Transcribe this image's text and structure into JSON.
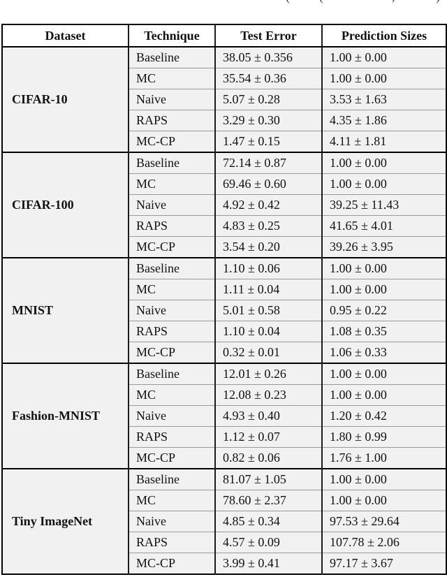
{
  "caption_fragments": [
    "(",
    "(",
    ",",
    ")"
  ],
  "table": {
    "columns": [
      "Dataset",
      "Technique",
      "Test Error",
      "Prediction Sizes"
    ],
    "groups": [
      {
        "dataset": "CIFAR-10",
        "rows": [
          {
            "technique": "Baseline",
            "test_error": "38.05 ± 0.356",
            "prediction_size": "1.00 ± 0.00"
          },
          {
            "technique": "MC",
            "test_error": "35.54 ± 0.36",
            "prediction_size": "1.00 ± 0.00"
          },
          {
            "technique": "Naive",
            "test_error": "5.07 ± 0.28",
            "prediction_size": "3.53 ± 1.63"
          },
          {
            "technique": "RAPS",
            "test_error": "3.29 ± 0.30",
            "prediction_size": "4.35 ± 1.86"
          },
          {
            "technique": "MC-CP",
            "test_error": "1.47 ± 0.15",
            "prediction_size": "4.11 ± 1.81"
          }
        ]
      },
      {
        "dataset": "CIFAR-100",
        "rows": [
          {
            "technique": "Baseline",
            "test_error": "72.14 ± 0.87",
            "prediction_size": "1.00 ± 0.00"
          },
          {
            "technique": "MC",
            "test_error": "69.46 ± 0.60",
            "prediction_size": "1.00 ± 0.00"
          },
          {
            "technique": "Naive",
            "test_error": "4.92 ± 0.42",
            "prediction_size": "39.25 ± 11.43"
          },
          {
            "technique": "RAPS",
            "test_error": "4.83 ± 0.25",
            "prediction_size": "41.65 ± 4.01"
          },
          {
            "technique": "MC-CP",
            "test_error": "3.54 ± 0.20",
            "prediction_size": "39.26 ± 3.95"
          }
        ]
      },
      {
        "dataset": "MNIST",
        "rows": [
          {
            "technique": "Baseline",
            "test_error": "1.10 ± 0.06",
            "prediction_size": "1.00 ± 0.00"
          },
          {
            "technique": "MC",
            "test_error": "1.11 ± 0.04",
            "prediction_size": "1.00 ± 0.00"
          },
          {
            "technique": "Naive",
            "test_error": "5.01 ± 0.58",
            "prediction_size": "0.95 ± 0.22"
          },
          {
            "technique": "RAPS",
            "test_error": "1.10 ± 0.04",
            "prediction_size": "1.08 ± 0.35"
          },
          {
            "technique": "MC-CP",
            "test_error": "0.32 ± 0.01",
            "prediction_size": "1.06 ± 0.33"
          }
        ]
      },
      {
        "dataset": "Fashion-MNIST",
        "rows": [
          {
            "technique": "Baseline",
            "test_error": "12.01 ± 0.26",
            "prediction_size": "1.00 ± 0.00"
          },
          {
            "technique": "MC",
            "test_error": "12.08 ± 0.23",
            "prediction_size": "1.00 ± 0.00"
          },
          {
            "technique": "Naive",
            "test_error": "4.93 ± 0.40",
            "prediction_size": "1.20 ± 0.42"
          },
          {
            "technique": "RAPS",
            "test_error": "1.12 ± 0.07",
            "prediction_size": "1.80 ± 0.99"
          },
          {
            "technique": "MC-CP",
            "test_error": "0.82 ± 0.06",
            "prediction_size": "1.76 ± 1.00"
          }
        ]
      },
      {
        "dataset": "Tiny ImageNet",
        "rows": [
          {
            "technique": "Baseline",
            "test_error": "81.07 ± 1.05",
            "prediction_size": "1.00 ± 0.00"
          },
          {
            "technique": "MC",
            "test_error": "78.60 ± 2.37",
            "prediction_size": "1.00 ± 0.00"
          },
          {
            "technique": "Naive",
            "test_error": "4.85 ± 0.34",
            "prediction_size": "97.53 ± 29.64"
          },
          {
            "technique": "RAPS",
            "test_error": "4.57 ± 0.09",
            "prediction_size": "107.78 ± 2.06"
          },
          {
            "technique": "MC-CP",
            "test_error": "3.99 ± 0.41",
            "prediction_size": "97.17 ± 3.67"
          }
        ]
      }
    ]
  }
}
